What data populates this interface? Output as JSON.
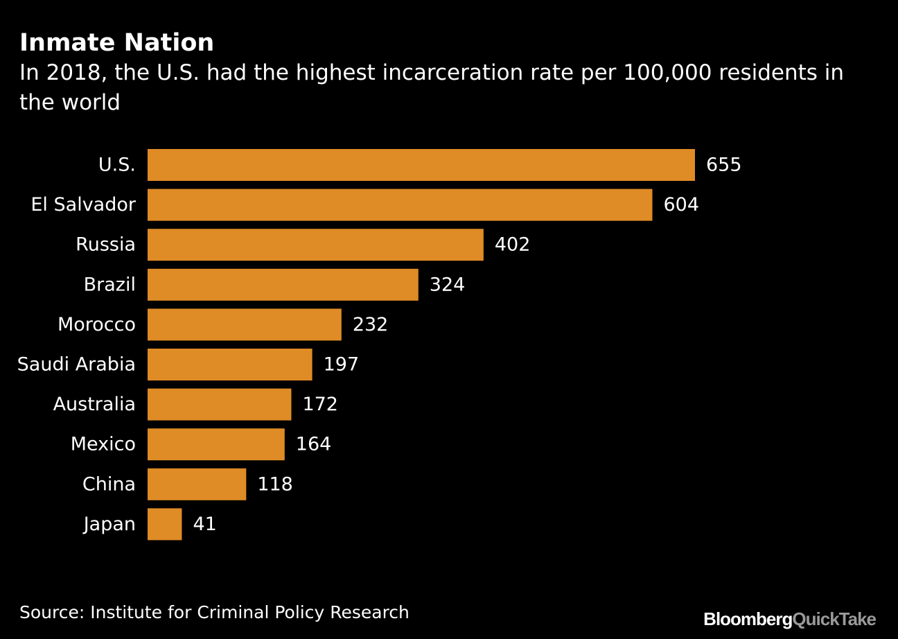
{
  "title": "Inmate Nation",
  "subtitle": "In 2018, the U.S. had the highest incarceration rate per 100,000 residents in the world",
  "source": "Source: Institute for Criminal Policy Research",
  "brand": {
    "part1": "Bloomberg",
    "part2": "QuickTake"
  },
  "colors": {
    "bar": "#df8b26",
    "background": "#000000",
    "text": "#ffffff"
  },
  "chart_data": {
    "type": "bar",
    "orientation": "horizontal",
    "categories": [
      "U.S.",
      "El Salvador",
      "Russia",
      "Brazil",
      "Morocco",
      "Saudi Arabia",
      "Australia",
      "Mexico",
      "China",
      "Japan"
    ],
    "values": [
      655,
      604,
      402,
      324,
      232,
      197,
      172,
      164,
      118,
      41
    ],
    "xlim": [
      0,
      655
    ],
    "grid": false,
    "legend": "none",
    "data_labels": true
  }
}
